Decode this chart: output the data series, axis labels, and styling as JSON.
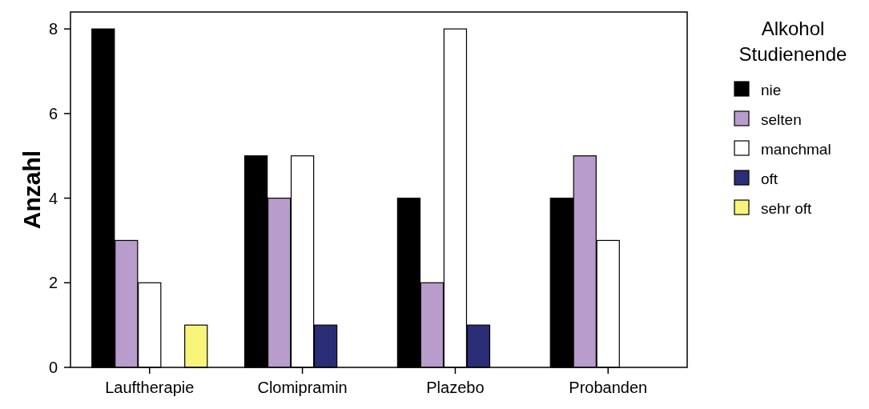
{
  "chart_data": {
    "type": "bar",
    "ylabel": "Anzahl",
    "legend_title": "Alkohol Studienende",
    "categories": [
      "Lauftherapie",
      "Clomipramin",
      "Plazebo",
      "Probanden"
    ],
    "series": [
      {
        "name": "nie",
        "color": "#000000",
        "values": [
          8,
          5,
          4,
          4
        ]
      },
      {
        "name": "selten",
        "color": "#b89ccb",
        "values": [
          3,
          4,
          2,
          5
        ]
      },
      {
        "name": "manchmal",
        "color": "#ffffff",
        "values": [
          2,
          5,
          8,
          3
        ]
      },
      {
        "name": "oft",
        "color": "#2b2d77",
        "values": [
          0,
          1,
          1,
          0
        ]
      },
      {
        "name": "sehr oft",
        "color": "#f8f47a",
        "values": [
          1,
          0,
          0,
          0
        ]
      }
    ],
    "ylim": [
      0,
      8.4
    ],
    "yticks": [
      0,
      2,
      4,
      6,
      8
    ],
    "grid": false,
    "legend": "right"
  }
}
